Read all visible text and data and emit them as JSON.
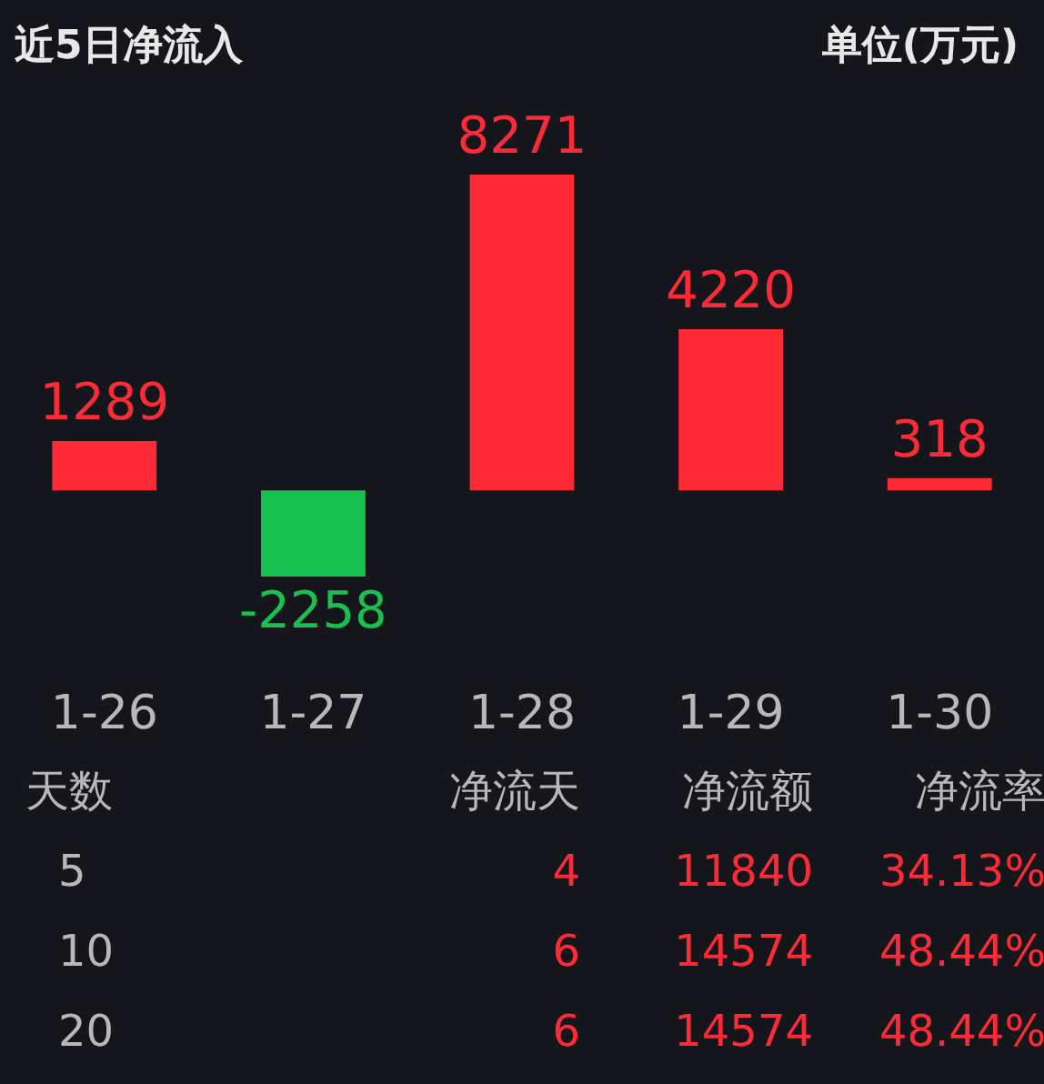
{
  "chart_data": {
    "type": "bar",
    "title": "近5日净流入",
    "subtitle": "单位(万元)",
    "categories": [
      "1-26",
      "1-27",
      "1-28",
      "1-29",
      "1-30"
    ],
    "values": [
      1289,
      -2258,
      8271,
      4220,
      318
    ],
    "colors": [
      "#ff2a38",
      "#18c050",
      "#ff2a38",
      "#ff2a38",
      "#ff2a38"
    ],
    "data_labels": true,
    "tick_labels": "x",
    "annotations": [
      "天数",
      "净流天",
      "净流额",
      "净流率",
      "5",
      "4",
      "11840",
      "34.13%",
      "10",
      "6",
      "14574",
      "48.44%",
      "20",
      "6",
      "14574",
      "48.44%"
    ]
  }
}
